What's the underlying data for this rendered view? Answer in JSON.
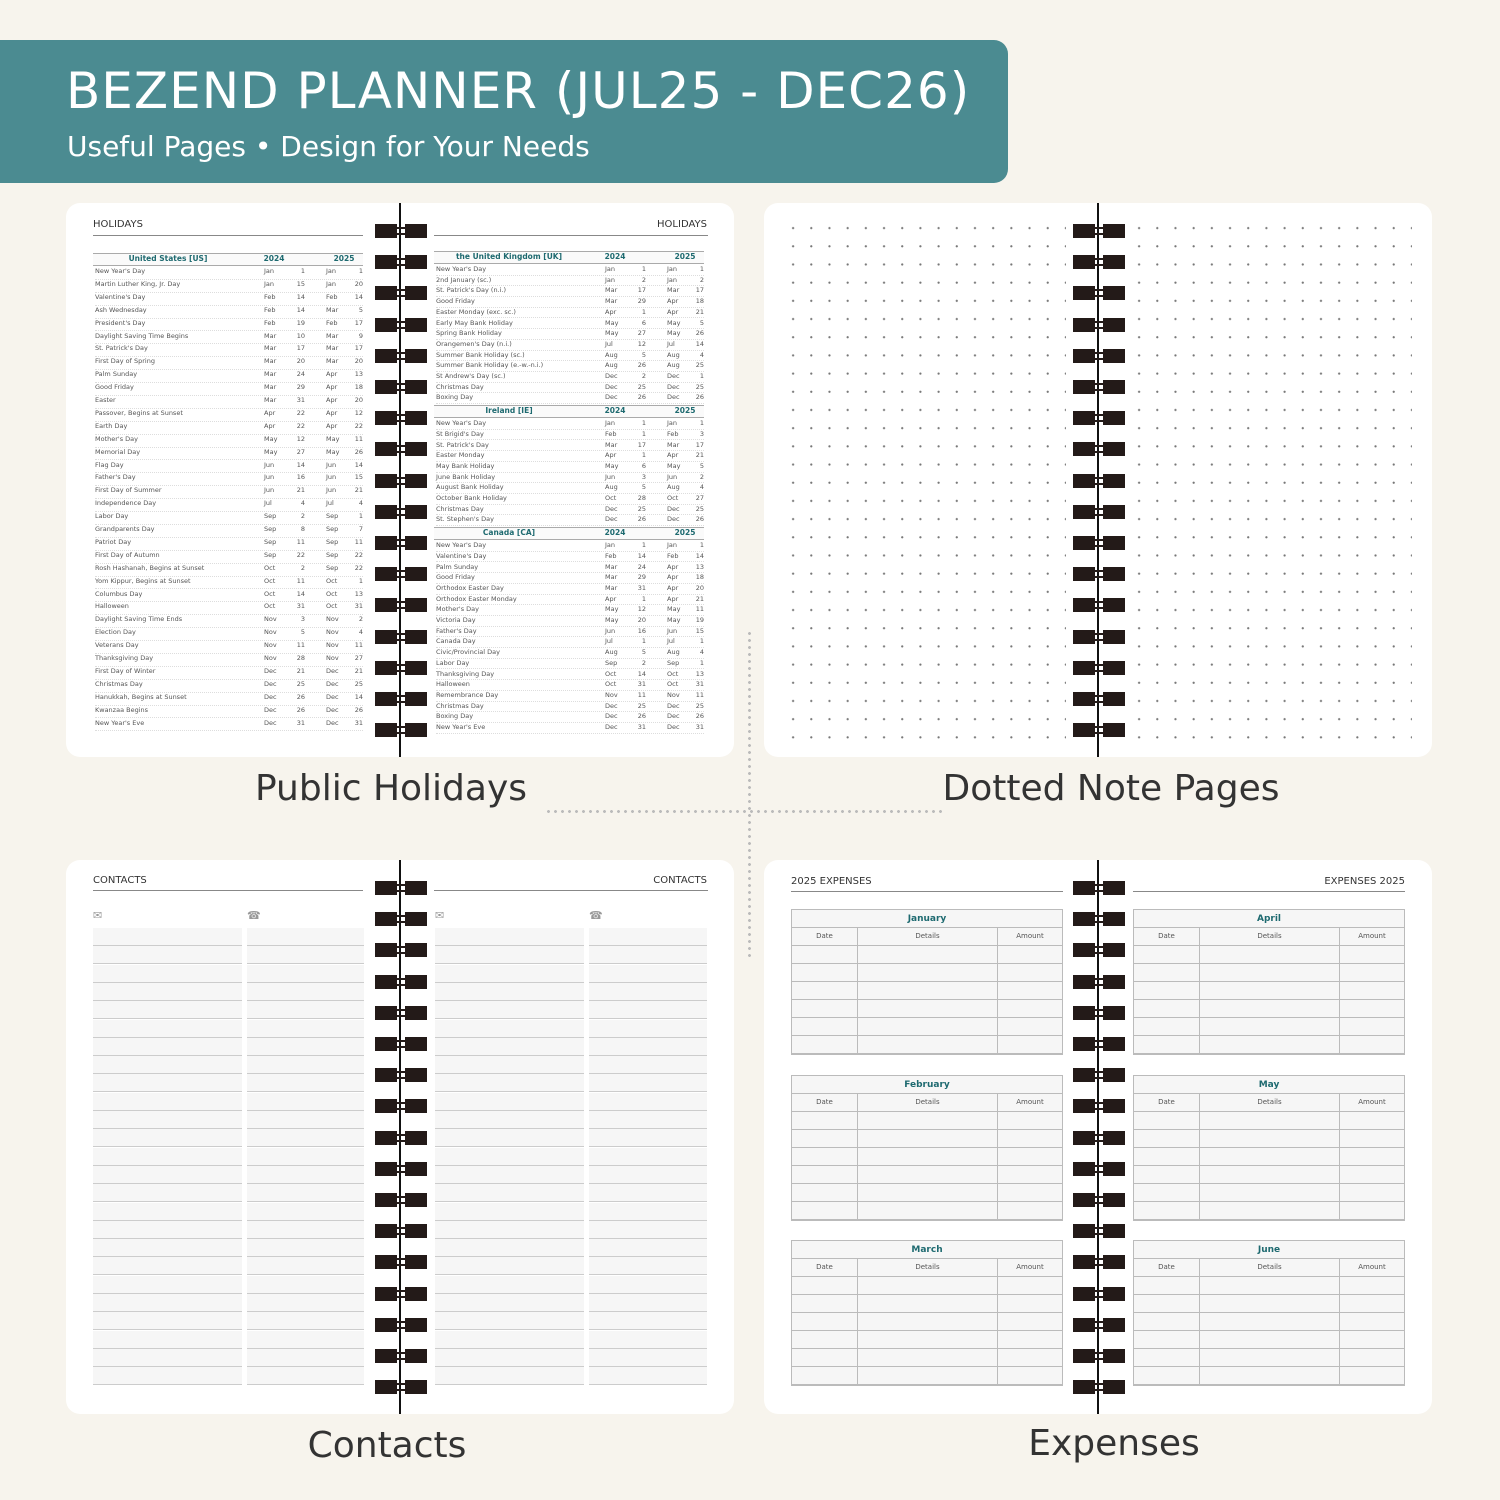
{
  "banner": {
    "title": "BEZEND PLANNER (JUL25 - DEC26)",
    "subtitle": "Useful Pages  •  Design for Your Needs"
  },
  "captions": {
    "holidays": "Public Holidays",
    "dotted": "Dotted Note Pages",
    "contacts": "Contacts",
    "expenses": "Expenses"
  },
  "colors": {
    "banner": "#4b8b91",
    "accent": "#1e6a70",
    "background": "#f7f4ed"
  },
  "holidays": {
    "left_title": "HOLIDAYS",
    "right_title": "HOLIDAYS",
    "year_a": "2024",
    "year_b": "2025",
    "sections": [
      {
        "country": "United States",
        "code": "US",
        "rows": [
          [
            "New Year's Day",
            "Jan",
            "1",
            "Jan",
            "1"
          ],
          [
            "Martin Luther King, Jr. Day",
            "Jan",
            "15",
            "Jan",
            "20"
          ],
          [
            "Valentine's Day",
            "Feb",
            "14",
            "Feb",
            "14"
          ],
          [
            "Ash Wednesday",
            "Feb",
            "14",
            "Mar",
            "5"
          ],
          [
            "President's Day",
            "Feb",
            "19",
            "Feb",
            "17"
          ],
          [
            "Daylight Saving Time Begins",
            "Mar",
            "10",
            "Mar",
            "9"
          ],
          [
            "St. Patrick's Day",
            "Mar",
            "17",
            "Mar",
            "17"
          ],
          [
            "First Day of Spring",
            "Mar",
            "20",
            "Mar",
            "20"
          ],
          [
            "Palm Sunday",
            "Mar",
            "24",
            "Apr",
            "13"
          ],
          [
            "Good Friday",
            "Mar",
            "29",
            "Apr",
            "18"
          ],
          [
            "Easter",
            "Mar",
            "31",
            "Apr",
            "20"
          ],
          [
            "Passover, Begins at Sunset",
            "Apr",
            "22",
            "Apr",
            "12"
          ],
          [
            "Earth Day",
            "Apr",
            "22",
            "Apr",
            "22"
          ],
          [
            "Mother's Day",
            "May",
            "12",
            "May",
            "11"
          ],
          [
            "Memorial Day",
            "May",
            "27",
            "May",
            "26"
          ],
          [
            "Flag Day",
            "Jun",
            "14",
            "Jun",
            "14"
          ],
          [
            "Father's Day",
            "Jun",
            "16",
            "Jun",
            "15"
          ],
          [
            "First Day of Summer",
            "Jun",
            "21",
            "Jun",
            "21"
          ],
          [
            "Independence Day",
            "Jul",
            "4",
            "Jul",
            "4"
          ],
          [
            "Labor Day",
            "Sep",
            "2",
            "Sep",
            "1"
          ],
          [
            "Grandparents Day",
            "Sep",
            "8",
            "Sep",
            "7"
          ],
          [
            "Patriot Day",
            "Sep",
            "11",
            "Sep",
            "11"
          ],
          [
            "First Day of Autumn",
            "Sep",
            "22",
            "Sep",
            "22"
          ],
          [
            "Rosh Hashanah, Begins at Sunset",
            "Oct",
            "2",
            "Sep",
            "22"
          ],
          [
            "Yom Kippur, Begins at Sunset",
            "Oct",
            "11",
            "Oct",
            "1"
          ],
          [
            "Columbus Day",
            "Oct",
            "14",
            "Oct",
            "13"
          ],
          [
            "Halloween",
            "Oct",
            "31",
            "Oct",
            "31"
          ],
          [
            "Daylight Saving Time Ends",
            "Nov",
            "3",
            "Nov",
            "2"
          ],
          [
            "Election Day",
            "Nov",
            "5",
            "Nov",
            "4"
          ],
          [
            "Veterans Day",
            "Nov",
            "11",
            "Nov",
            "11"
          ],
          [
            "Thanksgiving Day",
            "Nov",
            "28",
            "Nov",
            "27"
          ],
          [
            "First Day of Winter",
            "Dec",
            "21",
            "Dec",
            "21"
          ],
          [
            "Christmas Day",
            "Dec",
            "25",
            "Dec",
            "25"
          ],
          [
            "Hanukkah, Begins at Sunset",
            "Dec",
            "26",
            "Dec",
            "14"
          ],
          [
            "Kwanzaa Begins",
            "Dec",
            "26",
            "Dec",
            "26"
          ],
          [
            "New Year's Eve",
            "Dec",
            "31",
            "Dec",
            "31"
          ]
        ]
      },
      {
        "country": "the United Kingdom",
        "code": "UK",
        "rows": [
          [
            "New Year's Day",
            "Jan",
            "1",
            "Jan",
            "1"
          ],
          [
            "2nd January (sc.)",
            "Jan",
            "2",
            "Jan",
            "2"
          ],
          [
            "St. Patrick's Day (n.i.)",
            "Mar",
            "17",
            "Mar",
            "17"
          ],
          [
            "Good Friday",
            "Mar",
            "29",
            "Apr",
            "18"
          ],
          [
            "Easter Monday (exc. sc.)",
            "Apr",
            "1",
            "Apr",
            "21"
          ],
          [
            "Early May Bank Holiday",
            "May",
            "6",
            "May",
            "5"
          ],
          [
            "Spring Bank Holiday",
            "May",
            "27",
            "May",
            "26"
          ],
          [
            "Orangemen's Day (n.i.)",
            "Jul",
            "12",
            "Jul",
            "14"
          ],
          [
            "Summer Bank Holiday (sc.)",
            "Aug",
            "5",
            "Aug",
            "4"
          ],
          [
            "Summer Bank Holiday (e.-w.-n.i.)",
            "Aug",
            "26",
            "Aug",
            "25"
          ],
          [
            "St Andrew's Day (sc.)",
            "Dec",
            "2",
            "Dec",
            "1"
          ],
          [
            "Christmas Day",
            "Dec",
            "25",
            "Dec",
            "25"
          ],
          [
            "Boxing Day",
            "Dec",
            "26",
            "Dec",
            "26"
          ]
        ]
      },
      {
        "country": "Ireland",
        "code": "IE",
        "rows": [
          [
            "New Year's Day",
            "Jan",
            "1",
            "Jan",
            "1"
          ],
          [
            "St Brigid's Day",
            "Feb",
            "1",
            "Feb",
            "3"
          ],
          [
            "St. Patrick's Day",
            "Mar",
            "17",
            "Mar",
            "17"
          ],
          [
            "Easter Monday",
            "Apr",
            "1",
            "Apr",
            "21"
          ],
          [
            "May Bank Holiday",
            "May",
            "6",
            "May",
            "5"
          ],
          [
            "June Bank Holiday",
            "Jun",
            "3",
            "Jun",
            "2"
          ],
          [
            "August Bank Holiday",
            "Aug",
            "5",
            "Aug",
            "4"
          ],
          [
            "October Bank Holiday",
            "Oct",
            "28",
            "Oct",
            "27"
          ],
          [
            "Christmas Day",
            "Dec",
            "25",
            "Dec",
            "25"
          ],
          [
            "St. Stephen's Day",
            "Dec",
            "26",
            "Dec",
            "26"
          ]
        ]
      },
      {
        "country": "Canada",
        "code": "CA",
        "rows": [
          [
            "New Year's Day",
            "Jan",
            "1",
            "Jan",
            "1"
          ],
          [
            "Valentine's Day",
            "Feb",
            "14",
            "Feb",
            "14"
          ],
          [
            "Palm Sunday",
            "Mar",
            "24",
            "Apr",
            "13"
          ],
          [
            "Good Friday",
            "Mar",
            "29",
            "Apr",
            "18"
          ],
          [
            "Orthodox Easter Day",
            "Mar",
            "31",
            "Apr",
            "20"
          ],
          [
            "Orthodox Easter Monday",
            "Apr",
            "1",
            "Apr",
            "21"
          ],
          [
            "Mother's Day",
            "May",
            "12",
            "May",
            "11"
          ],
          [
            "Victoria Day",
            "May",
            "20",
            "May",
            "19"
          ],
          [
            "Father's Day",
            "Jun",
            "16",
            "Jun",
            "15"
          ],
          [
            "Canada Day",
            "Jul",
            "1",
            "Jul",
            "1"
          ],
          [
            "Civic/Provincial Day",
            "Aug",
            "5",
            "Aug",
            "4"
          ],
          [
            "Labor Day",
            "Sep",
            "2",
            "Sep",
            "1"
          ],
          [
            "Thanksgiving Day",
            "Oct",
            "14",
            "Oct",
            "13"
          ],
          [
            "Halloween",
            "Oct",
            "31",
            "Oct",
            "31"
          ],
          [
            "Remembrance Day",
            "Nov",
            "11",
            "Nov",
            "11"
          ],
          [
            "Christmas Day",
            "Dec",
            "25",
            "Dec",
            "25"
          ],
          [
            "Boxing Day",
            "Dec",
            "26",
            "Dec",
            "26"
          ],
          [
            "New Year's Eve",
            "Dec",
            "31",
            "Dec",
            "31"
          ]
        ]
      }
    ]
  },
  "contacts": {
    "left_title": "CONTACTS",
    "right_title": "CONTACTS",
    "email_icon": "envelope-icon",
    "phone_icon": "telephone-icon"
  },
  "expenses": {
    "left_title": "2025 EXPENSES",
    "right_title": "EXPENSES 2025",
    "columns": [
      "Date",
      "Details",
      "Amount"
    ],
    "left_months": [
      "January",
      "February",
      "March"
    ],
    "right_months": [
      "April",
      "May",
      "June"
    ]
  }
}
